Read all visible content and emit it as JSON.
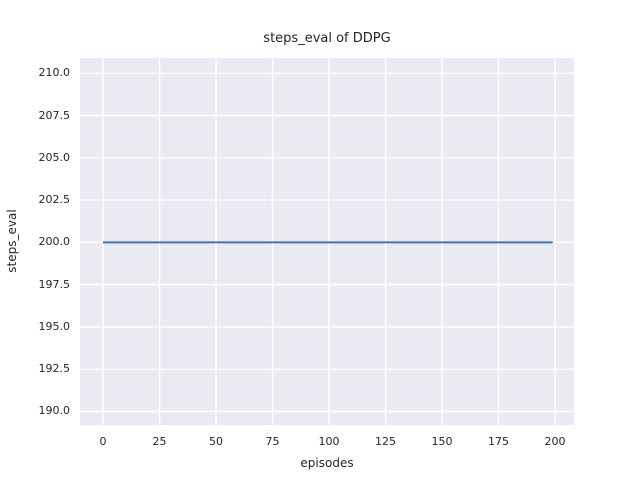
{
  "chart_data": {
    "type": "line",
    "title": "steps_eval of DDPG",
    "xlabel": "episodes",
    "ylabel": "steps_eval",
    "xlim": [
      -10.2,
      208.4
    ],
    "ylim": [
      189.2,
      210.9
    ],
    "x_ticks": [
      0,
      25,
      50,
      75,
      100,
      125,
      150,
      175,
      200
    ],
    "x_tick_labels": [
      "0",
      "25",
      "50",
      "75",
      "100",
      "125",
      "150",
      "175",
      "200"
    ],
    "y_ticks": [
      190.0,
      192.5,
      195.0,
      197.5,
      200.0,
      202.5,
      205.0,
      207.5,
      210.0
    ],
    "y_tick_labels": [
      "190.0",
      "192.5",
      "195.0",
      "197.5",
      "200.0",
      "202.5",
      "205.0",
      "207.5",
      "210.0"
    ],
    "grid": true,
    "legend": false,
    "series": [
      {
        "name": "steps_eval",
        "color": "#4c72b0",
        "line_width": 2,
        "x": [
          0,
          199
        ],
        "y": [
          200,
          200
        ],
        "constant_value": 200
      }
    ],
    "colors": {
      "plot_background": "#eaeaf2",
      "figure_background": "#ffffff",
      "gridline": "#ffffff",
      "text": "#262626",
      "line": "#4c72b0"
    }
  }
}
